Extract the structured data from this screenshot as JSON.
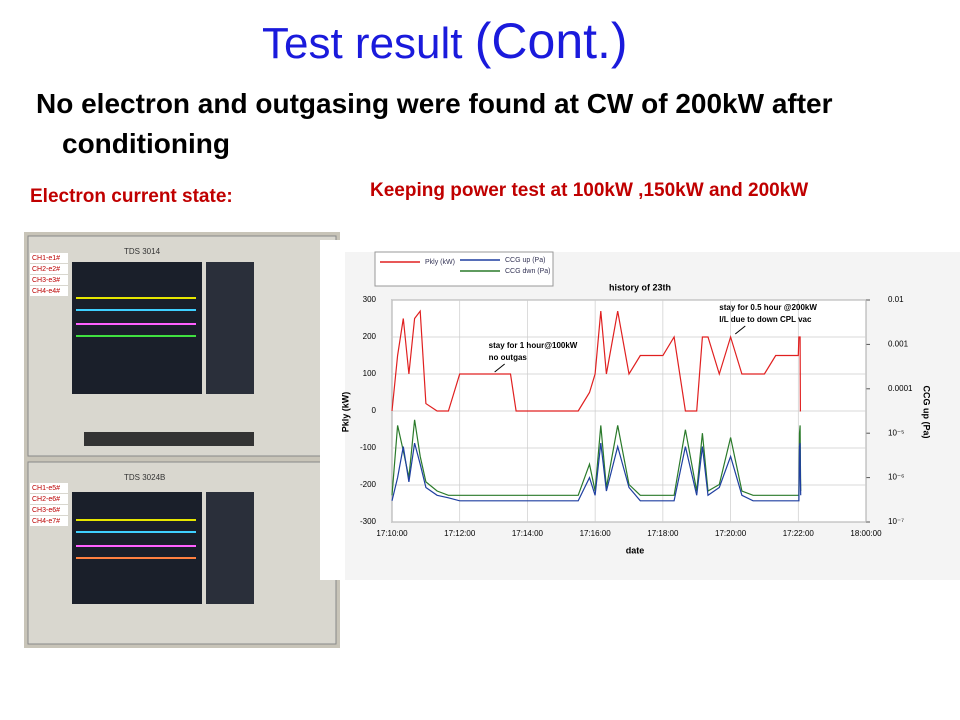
{
  "slide": {
    "title": {
      "main": "Test result",
      "cont": "(Cont.)"
    },
    "statement": "No electron and outgasing were found at  CW of 200kW after conditioning",
    "left_caption": "Electron current state:",
    "right_caption": "Keeping power test at 100kW ,150kW and 200kW",
    "photo": {
      "scopes": [
        {
          "model": "TDS 3014",
          "labels": [
            "CH1-e1#",
            "CH2-e2#",
            "CH3-e3#",
            "CH4-e4#"
          ]
        },
        {
          "model": "TDS 3024B",
          "labels": [
            "CH1-e5#",
            "CH2-e6#",
            "CH3-e6#",
            "CH4-e7#"
          ]
        }
      ]
    }
  },
  "chart_data": {
    "type": "line",
    "title": "history of 23th",
    "xlabel": "date",
    "ylabel": "Pkly (kW)",
    "y2label": "CCG up (Pa)",
    "x": [
      "17:10:00",
      "17:10:10",
      "17:10:20",
      "17:10:30",
      "17:10:40",
      "17:10:50",
      "17:11:00",
      "17:11:20",
      "17:11:40",
      "17:12:00",
      "17:12:30",
      "17:13:00",
      "17:13:30",
      "17:13:40",
      "17:14:00",
      "17:14:30",
      "17:15:00",
      "17:15:30",
      "17:15:50",
      "17:16:00",
      "17:16:10",
      "17:16:20",
      "17:16:40",
      "17:17:00",
      "17:17:20",
      "17:17:40",
      "17:18:00",
      "17:18:20",
      "17:18:40",
      "17:19:00",
      "17:19:10",
      "17:19:20",
      "17:19:40",
      "17:20:00",
      "17:20:20",
      "17:20:40",
      "17:21:00",
      "17:21:20",
      "17:21:40",
      "17:22:00",
      "17:22:20",
      "17:22:40",
      "17:23:00",
      "17:23:10",
      "17:23:20"
    ],
    "series": [
      {
        "name": "Pkly (kW)",
        "color": "#e02020",
        "values": [
          0,
          150,
          250,
          100,
          250,
          270,
          20,
          0,
          0,
          100,
          100,
          100,
          100,
          0,
          0,
          0,
          0,
          0,
          50,
          100,
          270,
          100,
          270,
          100,
          150,
          150,
          150,
          200,
          0,
          0,
          200,
          200,
          100,
          200,
          100,
          100,
          100,
          150,
          150,
          150,
          200,
          200,
          200,
          0,
          0
        ]
      },
      {
        "name": "CCG up (Pa)",
        "color": "#1f3fa0",
        "axis": "y2",
        "values": [
          3e-07,
          1e-06,
          5e-06,
          8e-07,
          6e-06,
          2e-06,
          6e-07,
          4e-07,
          3.5e-07,
          3e-07,
          3e-07,
          3e-07,
          3e-07,
          3e-07,
          3e-07,
          3e-07,
          3e-07,
          3e-07,
          1e-06,
          4e-07,
          6e-06,
          5e-07,
          5e-06,
          6e-07,
          3e-07,
          3e-07,
          3e-07,
          3e-07,
          5e-06,
          4e-07,
          5e-06,
          4e-07,
          6e-07,
          3e-06,
          4e-07,
          3e-07,
          3e-07,
          3e-07,
          3e-07,
          3e-07,
          3e-07,
          5e-06,
          6e-06,
          1e-06,
          4e-07
        ]
      },
      {
        "name": "CCG dwn (Pa)",
        "color": "#2a7a2a",
        "axis": "y2",
        "values": [
          4e-07,
          1.5e-05,
          4e-06,
          1e-06,
          2e-05,
          3e-06,
          8e-07,
          5e-07,
          4e-07,
          4e-07,
          4e-07,
          4e-07,
          4e-07,
          4e-07,
          4e-07,
          4e-07,
          4e-07,
          4e-07,
          2e-06,
          5e-07,
          1.5e-05,
          6e-07,
          1.5e-05,
          7e-07,
          4e-07,
          4e-07,
          4e-07,
          4e-07,
          1.2e-05,
          5e-07,
          1e-05,
          5e-07,
          7e-07,
          8e-06,
          5e-07,
          4e-07,
          4e-07,
          4e-07,
          4e-07,
          4e-07,
          4e-07,
          1e-05,
          1.5e-05,
          2e-06,
          5e-07
        ]
      }
    ],
    "xticks": [
      "17:10:00",
      "17:12:00",
      "17:14:00",
      "17:16:00",
      "17:18:00",
      "17:20:00",
      "17:22:00",
      "18:00:00"
    ],
    "ylim": [
      -300,
      300
    ],
    "yticks": [
      -300,
      -200,
      -100,
      0,
      100,
      200,
      300
    ],
    "y2lim": [
      1e-07,
      0.01
    ],
    "y2log": true,
    "y2ticks": [
      {
        "value": 1e-07,
        "label": "10⁻⁷"
      },
      {
        "value": 1e-06,
        "label": "10⁻⁶"
      },
      {
        "value": 1e-05,
        "label": "10⁻⁵"
      },
      0.0001,
      0.001,
      0.01
    ],
    "grid": true,
    "annotations": [
      {
        "lines": [
          "stay for 1 hour@100kW",
          "no outgas"
        ],
        "at": "17:12:30"
      },
      {
        "lines": [
          "stay for 0.5 hour @200kW",
          "I/L due to down CPL vac"
        ],
        "at": "17:19:40"
      }
    ]
  }
}
